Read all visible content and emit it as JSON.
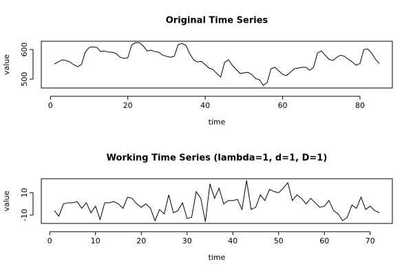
{
  "chart_data": [
    {
      "type": "line",
      "title": "Original Time Series",
      "x_label": "time",
      "y_label": "value",
      "color": "#000000",
      "x": [
        1,
        2,
        3,
        4,
        5,
        6,
        7,
        8,
        9,
        10,
        11,
        12,
        13,
        14,
        15,
        16,
        17,
        18,
        19,
        20,
        21,
        22,
        23,
        24,
        25,
        26,
        27,
        28,
        29,
        30,
        31,
        32,
        33,
        34,
        35,
        36,
        37,
        38,
        39,
        40,
        41,
        42,
        43,
        44,
        45,
        46,
        47,
        48,
        49,
        50,
        51,
        52,
        53,
        54,
        55,
        56,
        57,
        58,
        59,
        60,
        61,
        62,
        63,
        64,
        65,
        66,
        67,
        68,
        69,
        70,
        71,
        72,
        73,
        74,
        75,
        76,
        77,
        78,
        79,
        80,
        81,
        82,
        83,
        84,
        85
      ],
      "values": [
        551,
        558,
        565,
        563,
        558,
        549,
        542,
        549,
        591,
        607,
        609,
        607,
        593,
        595,
        591,
        591,
        586,
        574,
        570,
        572,
        616,
        623,
        623,
        612,
        595,
        598,
        593,
        591,
        581,
        577,
        574,
        577,
        616,
        621,
        614,
        586,
        565,
        558,
        560,
        549,
        537,
        533,
        519,
        507,
        556,
        565,
        547,
        533,
        519,
        521,
        523,
        516,
        502,
        498,
        479,
        488,
        535,
        540,
        528,
        516,
        512,
        523,
        535,
        537,
        540,
        540,
        530,
        540,
        588,
        595,
        581,
        567,
        563,
        574,
        581,
        577,
        567,
        558,
        547,
        553,
        600,
        602,
        588,
        567,
        553
      ],
      "xlim": [
        -2.36,
        88.36
      ],
      "ylim": [
        470,
        628
      ],
      "xticks": [
        0,
        20,
        40,
        60,
        80
      ],
      "yticks": [
        500,
        600
      ]
    },
    {
      "type": "line",
      "title": "Working Time Series (lambda=1, d=1, D=1)",
      "x_label": "time",
      "y_label": "value",
      "color": "#000000",
      "x": [
        1,
        2,
        3,
        4,
        5,
        6,
        7,
        8,
        9,
        10,
        11,
        12,
        13,
        14,
        15,
        16,
        17,
        18,
        19,
        20,
        21,
        22,
        23,
        24,
        25,
        26,
        27,
        28,
        29,
        30,
        31,
        32,
        33,
        34,
        35,
        36,
        37,
        38,
        39,
        40,
        41,
        42,
        43,
        44,
        45,
        46,
        47,
        48,
        49,
        50,
        51,
        52,
        53,
        54,
        55,
        56,
        57,
        58,
        59,
        60,
        61,
        62,
        63,
        64,
        65,
        66,
        67,
        68,
        69,
        70,
        71,
        72
      ],
      "values": [
        -6,
        -11,
        0,
        1,
        1,
        2,
        -4,
        1,
        -8,
        -2,
        -14,
        1,
        1,
        2,
        0,
        -4,
        6,
        5,
        0,
        -3,
        0,
        -4,
        -15,
        -5,
        -9,
        8,
        -8,
        -6,
        1,
        -13,
        -12,
        11,
        5,
        -16,
        18,
        5,
        14,
        0,
        3,
        3,
        4,
        -5,
        21,
        -5,
        -3,
        8,
        3,
        13,
        11,
        10,
        14,
        19,
        3,
        8,
        5,
        0,
        5,
        1,
        -3,
        -2,
        3,
        -6,
        -9,
        -15,
        -12,
        -1,
        -4,
        6,
        -5,
        -2,
        -6,
        -8
      ],
      "xlim": [
        -1.84,
        74.84
      ],
      "ylim": [
        -17.48,
        22.48
      ],
      "xticks": [
        0,
        10,
        20,
        30,
        40,
        50,
        60,
        70
      ],
      "yticks": [
        -10,
        10
      ]
    }
  ]
}
